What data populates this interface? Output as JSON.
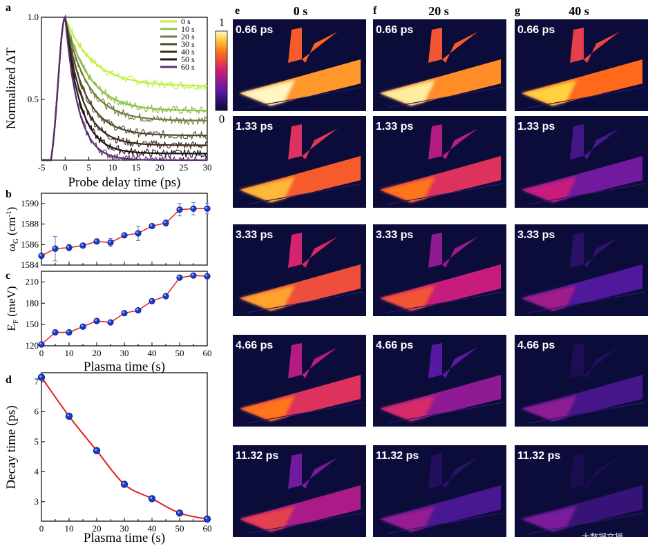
{
  "panel_labels": {
    "a": "a",
    "b": "b",
    "c": "c",
    "d": "d",
    "e": "e",
    "f": "f",
    "g": "g"
  },
  "colorbar": {
    "max_label": "1",
    "min_label": "0"
  },
  "image_grid": {
    "columns": [
      "0 s",
      "20 s",
      "40 s"
    ],
    "rows": [
      "0.66 ps",
      "1.33 ps",
      "3.33 ps",
      "4.66 ps",
      "11.32 ps"
    ],
    "brightness": [
      [
        0.8,
        0.78,
        0.72
      ],
      [
        0.68,
        0.56,
        0.3
      ],
      [
        0.64,
        0.48,
        0.22
      ],
      [
        0.56,
        0.36,
        0.18
      ],
      [
        0.42,
        0.2,
        0.14
      ]
    ]
  },
  "watermark": "大数据文摘",
  "chart_data": [
    {
      "id": "a",
      "type": "line",
      "xlabel": "Probe delay time (ps)",
      "ylabel": "Normalized ΔT",
      "xlim": [
        -5,
        30
      ],
      "ylim": [
        0.13,
        1.0
      ],
      "xticks": [
        "-5",
        "0",
        "5",
        "10",
        "15",
        "20",
        "25",
        "30"
      ],
      "yticks": [
        "0.5",
        "1.0"
      ],
      "legend_position": "top-right",
      "series": [
        {
          "name": "0  s",
          "color": "#bff044",
          "peak": 1.0,
          "plateau": 0.58,
          "tau": 5.8
        },
        {
          "name": "10 s",
          "color": "#8cc048",
          "peak": 1.0,
          "plateau": 0.43,
          "tau": 5.0
        },
        {
          "name": "20 s",
          "color": "#6f7d3e",
          "peak": 1.0,
          "plateau": 0.37,
          "tau": 4.6
        },
        {
          "name": "30 s",
          "color": "#4e4a2c",
          "peak": 1.0,
          "plateau": 0.28,
          "tau": 4.1
        },
        {
          "name": "40 s",
          "color": "#3c2a1c",
          "peak": 1.0,
          "plateau": 0.22,
          "tau": 3.6
        },
        {
          "name": "50 s",
          "color": "#201418",
          "peak": 1.0,
          "plateau": 0.17,
          "tau": 3.2
        },
        {
          "name": "60 s",
          "color": "#5a2f6f",
          "peak": 1.0,
          "plateau": 0.13,
          "tau": 2.8
        }
      ]
    },
    {
      "id": "b",
      "type": "scatter",
      "xlabel": "",
      "ylabel": "ω_G (cm⁻¹)",
      "ylabel_main": "ω",
      "ylabel_sub": "G",
      "ylabel_rest": " (cm",
      "ylabel_sup": "-1",
      "ylabel_end": ")",
      "xlim": [
        0,
        60
      ],
      "ylim": [
        1584,
        1591
      ],
      "yticks": [
        "1584",
        "1586",
        "1588",
        "1590"
      ],
      "x": [
        0,
        5,
        10,
        15,
        20,
        25,
        30,
        35,
        40,
        45,
        50,
        55,
        60
      ],
      "y": [
        1584.9,
        1585.6,
        1585.7,
        1585.9,
        1586.3,
        1586.2,
        1586.9,
        1587.1,
        1587.8,
        1588.1,
        1589.4,
        1589.5,
        1589.5
      ],
      "err": [
        0,
        1.2,
        0.3,
        0.2,
        0.25,
        0.4,
        0.2,
        0.7,
        0.2,
        0.3,
        0.6,
        0.6,
        0.5
      ]
    },
    {
      "id": "c",
      "type": "scatter",
      "xlabel": "Plasma time (s)",
      "ylabel_main": "E",
      "ylabel_sub": "F",
      "ylabel_rest": " (meV)",
      "xlim": [
        0,
        60
      ],
      "ylim": [
        120,
        225
      ],
      "xticks": [
        "0",
        "10",
        "20",
        "30",
        "40",
        "50",
        "60"
      ],
      "yticks": [
        "120",
        "150",
        "180",
        "210"
      ],
      "x": [
        0,
        5,
        10,
        15,
        20,
        25,
        30,
        35,
        40,
        45,
        50,
        55,
        60
      ],
      "y": [
        122,
        139,
        139,
        147,
        155,
        153,
        166,
        170,
        183,
        190,
        216,
        219,
        218
      ]
    },
    {
      "id": "d",
      "type": "scatter",
      "xlabel": "Plasma time (s)",
      "ylabel": "Decay time (ps)",
      "xlim": [
        0,
        60
      ],
      "ylim": [
        2.35,
        7.3
      ],
      "xticks": [
        "0",
        "10",
        "20",
        "30",
        "40",
        "50",
        "60"
      ],
      "yticks": [
        "3",
        "4",
        "5",
        "6",
        "7"
      ],
      "x": [
        0,
        10,
        20,
        30,
        40,
        50,
        60
      ],
      "y": [
        7.15,
        5.85,
        4.7,
        3.58,
        3.1,
        2.62,
        2.42
      ]
    }
  ]
}
